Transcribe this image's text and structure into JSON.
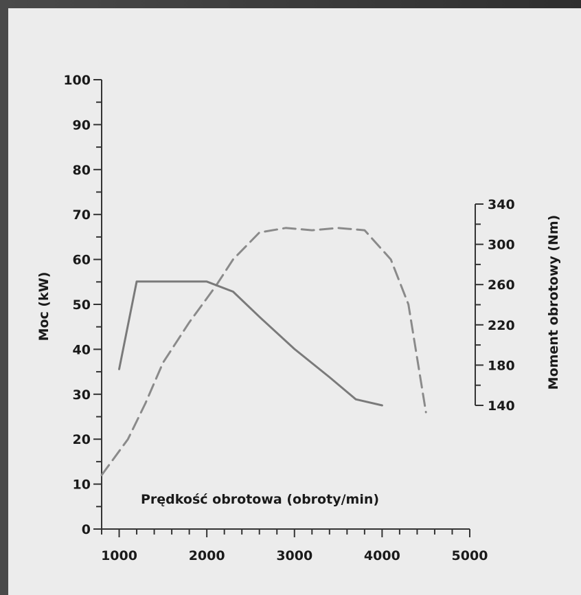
{
  "chart_data": {
    "type": "line",
    "x_label": "Prędkość obrotowa (obroty/min)",
    "y_label": "Moc (kW)",
    "y2_label": "Moment obrotowy (Nm)",
    "x_ticks": [
      "1000",
      "2000",
      "3000",
      "4000",
      "5000"
    ],
    "y_ticks": [
      "0",
      "10",
      "20",
      "30",
      "40",
      "50",
      "60",
      "70",
      "80",
      "90",
      "100"
    ],
    "y2_ticks": [
      "140",
      "180",
      "220",
      "260",
      "300",
      "340"
    ],
    "xlim": [
      800,
      5000
    ],
    "ylim": [
      0,
      100
    ],
    "y2lim": [
      140,
      340
    ],
    "grid": false,
    "series": [
      {
        "axis": "left",
        "style": "dashed",
        "color": "#8a8a8a",
        "x": [
          800,
          1100,
          1300,
          1500,
          1800,
          2100,
          2300,
          2600,
          2900,
          3200,
          3500,
          3800,
          4100,
          4300,
          4500
        ],
        "y": [
          12,
          20,
          28,
          37,
          46,
          54,
          60,
          66,
          67,
          66.5,
          67,
          66.5,
          60,
          50,
          26
        ]
      },
      {
        "axis": "right",
        "style": "solid",
        "color": "#7a7a7a",
        "x": [
          1000,
          1200,
          1500,
          2000,
          2300,
          2600,
          3000,
          3400,
          3700,
          4000
        ],
        "y": [
          176,
          263,
          263,
          263,
          253,
          228,
          196,
          168,
          146,
          140
        ]
      }
    ]
  }
}
